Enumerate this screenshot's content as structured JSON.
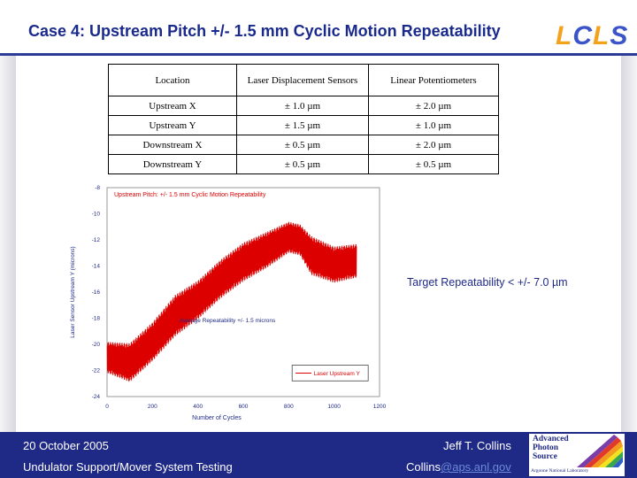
{
  "slide": {
    "title": "Case 4: Upstream Pitch +/- 1.5 mm Cyclic Motion Repeatability",
    "logo": {
      "letters": [
        "L",
        "C",
        "L",
        "S"
      ],
      "colors": [
        "#f2a21b",
        "#3b55c9",
        "#f2a21b",
        "#3b55c9"
      ]
    },
    "accent_color": "#1a2a8c",
    "footer_color": "#1f2a86"
  },
  "table": {
    "headers": [
      "Location",
      "Laser Displacement Sensors",
      "Linear Potentiometers"
    ],
    "rows": [
      [
        "Upstream X",
        "± 1.0 µm",
        "± 2.0 µm"
      ],
      [
        "Upstream Y",
        "± 1.5 µm",
        "± 1.0 µm"
      ],
      [
        "Downstream X",
        "± 0.5 µm",
        "± 2.0 µm"
      ],
      [
        "Downstream Y",
        "± 0.5 µm",
        "± 0.5 µm"
      ]
    ]
  },
  "annotation": {
    "target": "Target Repeatability < +/- 7.0 µm"
  },
  "chart_data": {
    "type": "line",
    "title": "Upstream Pitch: +/- 1.5 mm Cyclic Motion Repeatability",
    "xlabel": "Number of Cycles",
    "ylabel": "Laser Sensor Upstream Y (microns)",
    "xlim": [
      0,
      1200
    ],
    "ylim": [
      -24,
      -8
    ],
    "xticks": [
      "0",
      "200",
      "400",
      "600",
      "800",
      "1000",
      "1200"
    ],
    "yticks": [
      "-8",
      "-10",
      "-12",
      "-14",
      "-16",
      "-18",
      "-20",
      "-22",
      "-24"
    ],
    "annotation": "Average Repeatability +/- 1.5 microns",
    "legend_position": "bottom-right",
    "series": [
      {
        "name": "Laser Upstream Y",
        "color": "#dd0000",
        "x": [
          0,
          100,
          200,
          300,
          400,
          500,
          600,
          700,
          800,
          850,
          900,
          1000,
          1100
        ],
        "center": [
          -21.0,
          -21.4,
          -19.8,
          -17.8,
          -16.6,
          -15.0,
          -13.7,
          -12.8,
          -11.8,
          -12.0,
          -13.2,
          -13.9,
          -13.6
        ],
        "amplitude": [
          1.2,
          1.5,
          1.5,
          1.6,
          1.5,
          1.5,
          1.5,
          1.4,
          1.2,
          1.2,
          1.5,
          1.4,
          1.3
        ]
      }
    ]
  },
  "footer": {
    "date": "20 October 2005",
    "project": "Undulator Support/Mover System Testing",
    "author": "Jeff T. Collins",
    "email_user": "Collins",
    "email_domain": "@aps.anl.gov",
    "aps_logo": {
      "line1": "Advanced",
      "line2": "Photon",
      "line3": "Source",
      "line4": "Argonne National Laboratory"
    }
  }
}
